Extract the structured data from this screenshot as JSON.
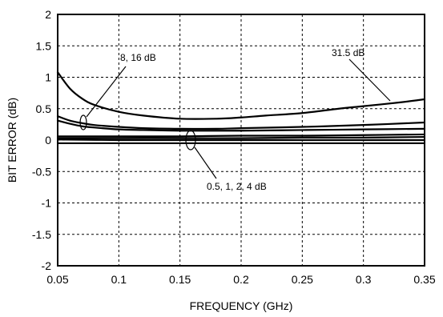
{
  "chart_data": {
    "type": "line",
    "xlabel": "FREQUENCY (GHz)",
    "ylabel": "BIT ERROR (dB)",
    "xlim": [
      0.05,
      0.35
    ],
    "ylim": [
      -2,
      2
    ],
    "xticks": [
      "0.05",
      "0.1",
      "0.15",
      "0.2",
      "0.25",
      "0.3",
      "0.35"
    ],
    "yticks": [
      "2",
      "1.5",
      "1",
      "0.5",
      "0",
      "-0.5",
      "-1",
      "-1.5",
      "-2"
    ],
    "grid": true,
    "annotations": [
      {
        "text": "8, 16 dB"
      },
      {
        "text": "31.5 dB"
      },
      {
        "text": "0.5, 1, 2, 4 dB"
      }
    ],
    "series": [
      {
        "x": [
          0.05,
          0.06,
          0.07,
          0.08,
          0.1,
          0.12,
          0.15,
          0.18,
          0.2,
          0.22,
          0.25,
          0.28,
          0.3,
          0.33,
          0.35
        ],
        "y": [
          1.08,
          0.82,
          0.66,
          0.56,
          0.45,
          0.39,
          0.34,
          0.34,
          0.36,
          0.39,
          0.43,
          0.5,
          0.54,
          0.6,
          0.65
        ]
      },
      {
        "x": [
          0.05,
          0.06,
          0.07,
          0.08,
          0.1,
          0.12,
          0.15,
          0.18,
          0.2,
          0.25,
          0.3,
          0.35
        ],
        "y": [
          0.38,
          0.31,
          0.27,
          0.24,
          0.21,
          0.19,
          0.18,
          0.18,
          0.19,
          0.21,
          0.24,
          0.28
        ]
      },
      {
        "x": [
          0.05,
          0.06,
          0.07,
          0.08,
          0.1,
          0.12,
          0.15,
          0.18,
          0.2,
          0.25,
          0.3,
          0.35
        ],
        "y": [
          0.31,
          0.26,
          0.22,
          0.2,
          0.17,
          0.16,
          0.15,
          0.15,
          0.15,
          0.16,
          0.17,
          0.18
        ]
      },
      {
        "x": [
          0.05,
          0.1,
          0.15,
          0.2,
          0.25,
          0.3,
          0.35
        ],
        "y": [
          0.06,
          0.06,
          0.06,
          0.07,
          0.07,
          0.08,
          0.09
        ]
      },
      {
        "x": [
          0.05,
          0.1,
          0.15,
          0.2,
          0.25,
          0.3,
          0.35
        ],
        "y": [
          0.03,
          0.03,
          0.03,
          0.03,
          0.04,
          0.04,
          0.05
        ]
      },
      {
        "x": [
          0.05,
          0.1,
          0.15,
          0.2,
          0.25,
          0.3,
          0.35
        ],
        "y": [
          0.01,
          0.0,
          0.0,
          0.0,
          0.0,
          0.0,
          0.0
        ]
      },
      {
        "x": [
          0.05,
          0.1,
          0.15,
          0.2,
          0.25,
          0.3,
          0.35
        ],
        "y": [
          -0.05,
          -0.05,
          -0.05,
          -0.05,
          -0.05,
          -0.05,
          -0.05
        ]
      }
    ]
  }
}
